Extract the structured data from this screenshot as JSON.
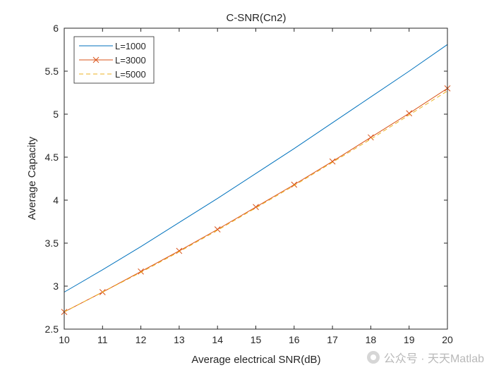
{
  "chart_data": {
    "type": "line",
    "title": "C-SNR(Cn2)",
    "xlabel": "Average electrical SNR(dB)",
    "ylabel": "Average Capacity",
    "xlim": [
      10,
      20
    ],
    "ylim": [
      2.5,
      6
    ],
    "xticks": [
      10,
      11,
      12,
      13,
      14,
      15,
      16,
      17,
      18,
      19,
      20
    ],
    "yticks": [
      2.5,
      3,
      3.5,
      4,
      4.5,
      5,
      5.5,
      6
    ],
    "yticklabels": [
      "2.5",
      "3",
      "3.5",
      "4",
      "4.5",
      "5",
      "5.5",
      "6"
    ],
    "grid": false,
    "legend_position": "top-left",
    "x": [
      10,
      11,
      12,
      13,
      14,
      15,
      16,
      17,
      18,
      19,
      20
    ],
    "series": [
      {
        "name": "L=1000",
        "color": "#0072bd",
        "style": "solid",
        "marker": "none",
        "values": [
          2.93,
          3.19,
          3.46,
          3.74,
          4.02,
          4.31,
          4.6,
          4.9,
          5.2,
          5.5,
          5.81
        ]
      },
      {
        "name": "L=3000",
        "color": "#d95319",
        "style": "solid",
        "marker": "x",
        "values": [
          2.7,
          2.93,
          3.17,
          3.41,
          3.66,
          3.92,
          4.18,
          4.45,
          4.73,
          5.01,
          5.3
        ]
      },
      {
        "name": "L=5000",
        "color": "#edb120",
        "style": "dashed",
        "marker": "none",
        "values": [
          2.7,
          2.93,
          3.16,
          3.4,
          3.65,
          3.91,
          4.17,
          4.44,
          4.71,
          4.99,
          5.27
        ]
      }
    ]
  },
  "watermark": {
    "text": "公众号 · 天天Matlab",
    "icon": "wechat-icon"
  }
}
